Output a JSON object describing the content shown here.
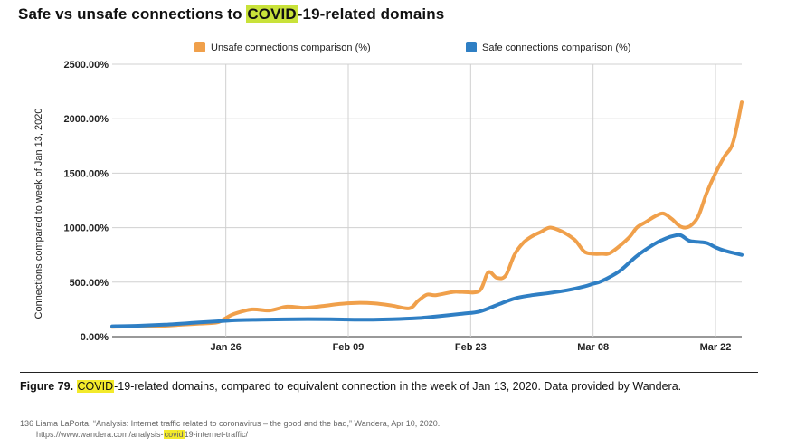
{
  "header": {
    "title_pre": "Safe vs unsafe connections to ",
    "title_hl": "COVID",
    "title_post": "-19-related domains"
  },
  "caption": {
    "label": "Figure 79.",
    "hl": "COVID",
    "text": "-19-related domains, compared to equivalent connection in the week of Jan 13, 2020. Data provided by Wandera."
  },
  "footnote": {
    "line1": "136 Liama LaPorta, “Analysis: Internet traffic related to coronavirus – the good and the bad,” Wandera, Apr 10, 2020.",
    "line2_pre": "https://www.wandera.com/analysis-",
    "line2_hl": "covid",
    "line2_post": "19-internet-traffic/"
  },
  "chart_data": {
    "type": "line",
    "title": "",
    "xlabel": "",
    "ylabel": "Connections compared to week of Jan 13, 2020",
    "ylim": [
      0,
      2500
    ],
    "yticks": [
      "0.00%",
      "500.00%",
      "1000.00%",
      "1500.00%",
      "2000.00%",
      "2500.00%"
    ],
    "ytick_values": [
      0,
      500,
      1000,
      1500,
      2000,
      2500
    ],
    "xlim": [
      "2020-01-13",
      "2020-03-25"
    ],
    "xticks": [
      "Jan 26",
      "Feb 09",
      "Feb 23",
      "Mar 08",
      "Mar 22"
    ],
    "xtick_dates": [
      "2020-01-26",
      "2020-02-09",
      "2020-02-23",
      "2020-03-08",
      "2020-03-22"
    ],
    "grid": true,
    "legend_position": "top",
    "series": [
      {
        "name": "Unsafe connections comparison (%)",
        "color": "#f0a04b",
        "x": [
          "2020-01-13",
          "2020-01-15",
          "2020-01-17",
          "2020-01-19",
          "2020-01-21",
          "2020-01-23",
          "2020-01-25",
          "2020-01-26",
          "2020-01-27",
          "2020-01-29",
          "2020-01-31",
          "2020-02-02",
          "2020-02-04",
          "2020-02-06",
          "2020-02-08",
          "2020-02-10",
          "2020-02-12",
          "2020-02-14",
          "2020-02-16",
          "2020-02-17",
          "2020-02-18",
          "2020-02-19",
          "2020-02-21",
          "2020-02-22",
          "2020-02-24",
          "2020-02-25",
          "2020-02-26",
          "2020-02-27",
          "2020-02-28",
          "2020-02-29",
          "2020-03-01",
          "2020-03-02",
          "2020-03-03",
          "2020-03-04",
          "2020-03-05",
          "2020-03-06",
          "2020-03-07",
          "2020-03-08",
          "2020-03-09",
          "2020-03-10",
          "2020-03-12",
          "2020-03-13",
          "2020-03-14",
          "2020-03-15",
          "2020-03-16",
          "2020-03-17",
          "2020-03-18",
          "2020-03-19",
          "2020-03-20",
          "2020-03-21",
          "2020-03-22",
          "2020-03-23",
          "2020-03-24",
          "2020-03-25"
        ],
        "values": [
          90,
          92,
          95,
          100,
          110,
          120,
          130,
          170,
          210,
          250,
          240,
          275,
          265,
          280,
          300,
          310,
          305,
          285,
          260,
          330,
          385,
          380,
          410,
          410,
          420,
          590,
          540,
          560,
          750,
          860,
          920,
          960,
          1000,
          980,
          940,
          880,
          780,
          760,
          760,
          770,
          900,
          1000,
          1050,
          1100,
          1130,
          1080,
          1010,
          1010,
          1100,
          1320,
          1500,
          1650,
          1780,
          2150
        ]
      },
      {
        "name": "Safe connections comparison (%)",
        "color": "#2f7fc4",
        "x": [
          "2020-01-13",
          "2020-01-16",
          "2020-01-19",
          "2020-01-22",
          "2020-01-25",
          "2020-01-27",
          "2020-01-30",
          "2020-02-03",
          "2020-02-07",
          "2020-02-10",
          "2020-02-14",
          "2020-02-17",
          "2020-02-19",
          "2020-02-22",
          "2020-02-24",
          "2020-02-26",
          "2020-02-28",
          "2020-03-01",
          "2020-03-03",
          "2020-03-05",
          "2020-03-07",
          "2020-03-08",
          "2020-03-09",
          "2020-03-11",
          "2020-03-13",
          "2020-03-15",
          "2020-03-16",
          "2020-03-17",
          "2020-03-18",
          "2020-03-19",
          "2020-03-20",
          "2020-03-21",
          "2020-03-22",
          "2020-03-23",
          "2020-03-25"
        ],
        "values": [
          95,
          100,
          110,
          125,
          140,
          150,
          155,
          160,
          160,
          155,
          160,
          170,
          185,
          210,
          230,
          290,
          350,
          380,
          400,
          425,
          460,
          485,
          510,
          600,
          740,
          850,
          890,
          920,
          930,
          880,
          870,
          860,
          820,
          790,
          750
        ]
      }
    ]
  }
}
